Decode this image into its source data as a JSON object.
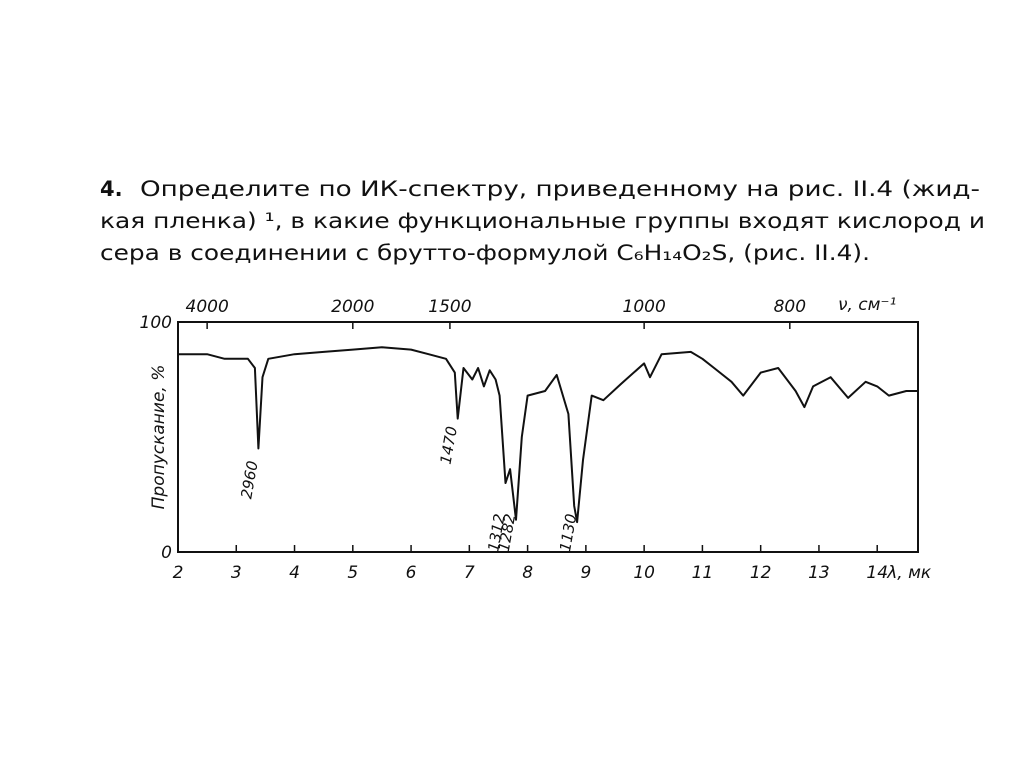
{
  "text": {
    "number": "4.",
    "lines": [
      "Определите по ИК-спектру, приведенному на рис. II.4 (жид-",
      "кая пленка) ¹, в какие функциональные группы входят кислород и",
      "сера в соединении с брутто-формулой C₆H₁₄O₂S, (рис. II.4)."
    ]
  },
  "chart_data": {
    "type": "line",
    "y_label": "Пропускание, %",
    "x_label": "λ, мк",
    "x2_label": "ν, см⁻¹",
    "x": [
      2.0,
      2.5,
      2.8,
      3.2,
      3.32,
      3.38,
      3.45,
      3.55,
      4.0,
      4.5,
      5.0,
      5.5,
      6.0,
      6.3,
      6.6,
      6.75,
      6.8,
      6.9,
      7.05,
      7.15,
      7.25,
      7.35,
      7.45,
      7.52,
      7.62,
      7.7,
      7.8,
      7.9,
      8.0,
      8.3,
      8.5,
      8.7,
      8.8,
      8.85,
      8.95,
      9.1,
      9.3,
      9.6,
      10.0,
      10.1,
      10.3,
      10.8,
      11.0,
      11.2,
      11.5,
      11.7,
      12.0,
      12.3,
      12.6,
      12.75,
      12.9,
      13.2,
      13.5,
      13.8,
      14.0,
      14.2,
      14.5,
      14.7
    ],
    "values": [
      86,
      86,
      84,
      84,
      80,
      45,
      76,
      84,
      86,
      87,
      88,
      89,
      88,
      86,
      84,
      78,
      58,
      80,
      75,
      80,
      72,
      79,
      75,
      68,
      30,
      36,
      14,
      50,
      68,
      70,
      77,
      60,
      20,
      13,
      40,
      68,
      66,
      73,
      82,
      76,
      86,
      87,
      84,
      80,
      74,
      68,
      78,
      80,
      70,
      63,
      72,
      76,
      67,
      74,
      72,
      68,
      70,
      70
    ],
    "color": "#111111",
    "xlim": [
      2,
      14.7
    ],
    "ylim": [
      0,
      100
    ],
    "xticks": [
      2,
      3,
      4,
      5,
      6,
      7,
      8,
      9,
      10,
      11,
      12,
      13,
      14
    ],
    "yticks": [
      0,
      100
    ],
    "x2ticks": [
      4000,
      2000,
      1500,
      1000,
      800
    ],
    "annotations": [
      {
        "text": "2960",
        "x": 3.38,
        "y": 31
      },
      {
        "text": "1470",
        "x": 6.8,
        "y": 46
      },
      {
        "text": "1312",
        "x": 7.62,
        "y": 8
      },
      {
        "text": "1282",
        "x": 7.8,
        "y": 8
      },
      {
        "text": "1130",
        "x": 8.85,
        "y": 8
      }
    ]
  }
}
